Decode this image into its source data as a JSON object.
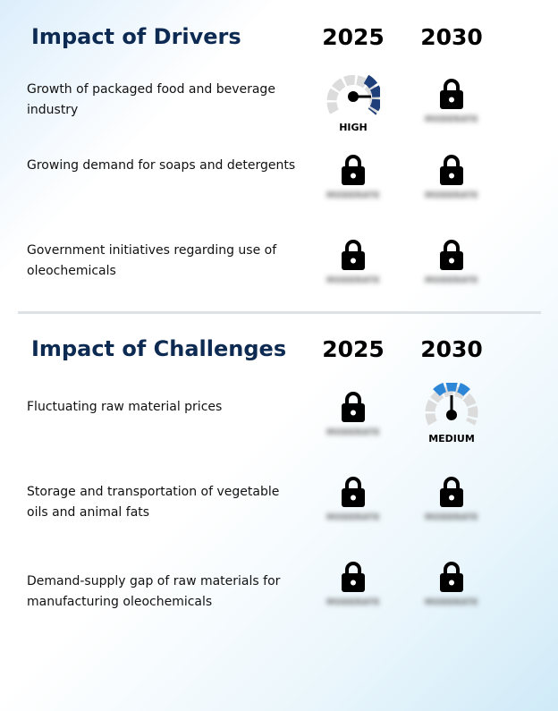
{
  "drivers": {
    "title": "Impact of Drivers",
    "year1": "2025",
    "year2": "2030",
    "rows": [
      {
        "label": "Growth of packaged food and beverage industry",
        "v2025": "HIGH",
        "v2030_locked": "MODERATE"
      },
      {
        "label": "Growing demand for soaps and detergents",
        "v2025_locked": "MODERATE",
        "v2030_locked": "MODERATE"
      },
      {
        "label": "Government initiatives regarding use of oleochemicals",
        "v2025_locked": "MODERATE",
        "v2030_locked": "MODERATE"
      }
    ]
  },
  "challenges": {
    "title": "Impact of Challenges",
    "year1": "2025",
    "year2": "2030",
    "rows": [
      {
        "label": "Fluctuating raw material prices",
        "v2025_locked": "MODERATE",
        "v2030": "MEDIUM"
      },
      {
        "label": "Storage and transportation of vegetable oils and animal fats",
        "v2025_locked": "MODERATE",
        "v2030_locked": "MODERATE"
      },
      {
        "label": "Demand-supply gap of raw materials for manufacturing oleochemicals",
        "v2025_locked": "MODERATE",
        "v2030_locked": "MODERATE"
      }
    ]
  },
  "colors": {
    "title": "#0d2a52",
    "gauge_high": "#1f3f7a",
    "gauge_medium": "#2e86d6",
    "gauge_track": "#dcdcdc"
  },
  "icons": {
    "locked": "lock-icon",
    "gauge": "gauge-icon"
  }
}
